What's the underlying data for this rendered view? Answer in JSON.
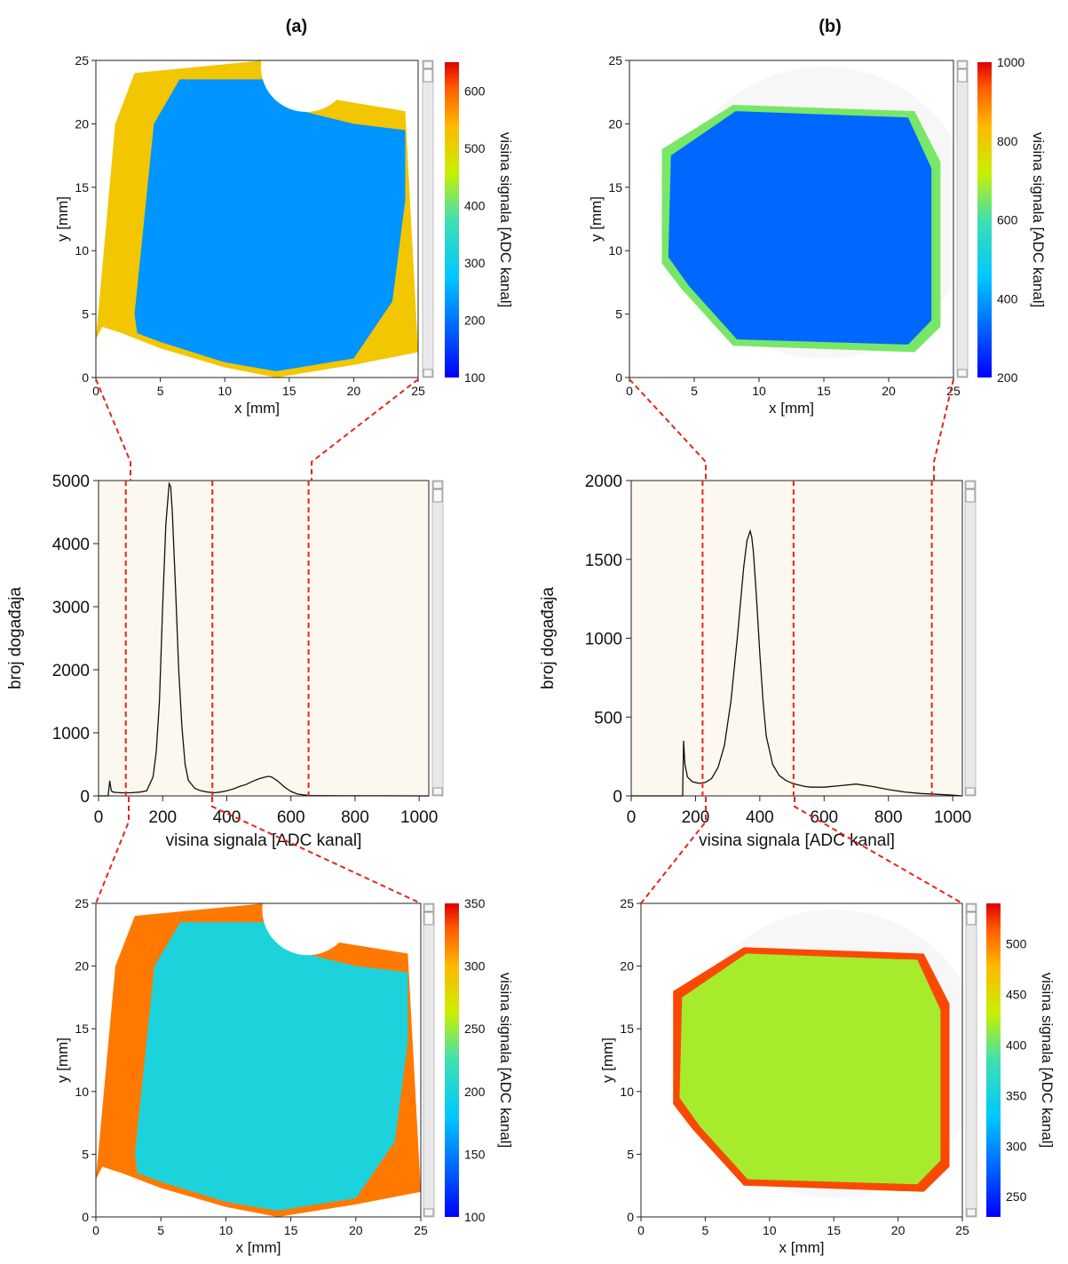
{
  "chart_data": [
    {
      "type": "heatmap",
      "panel_label": "(a)",
      "xlabel": "x [mm]",
      "ylabel": "y [mm]",
      "xlim": [
        0,
        25
      ],
      "ylim": [
        0,
        25
      ],
      "x_ticks": [
        "0",
        "5",
        "10",
        "15",
        "20",
        "25"
      ],
      "y_ticks": [
        "0",
        "5",
        "10",
        "15",
        "20",
        "25"
      ],
      "colorbar": {
        "label": "visina signala [ADC kanal]",
        "range": [
          100,
          650
        ],
        "ticks": [
          "100",
          "200",
          "300",
          "400",
          "500",
          "600"
        ]
      },
      "description_values": {
        "edge_region_level": 520,
        "central_region_level": 230
      }
    },
    {
      "type": "heatmap",
      "panel_label": "(b)",
      "xlabel": "x [mm]",
      "ylabel": "y [mm]",
      "xlim": [
        0,
        25
      ],
      "ylim": [
        0,
        25
      ],
      "x_ticks": [
        "0",
        "5",
        "10",
        "15",
        "20",
        "25"
      ],
      "y_ticks": [
        "0",
        "5",
        "10",
        "15",
        "20",
        "25"
      ],
      "colorbar": {
        "label": "visina signala [ADC kanal]",
        "range": [
          200,
          1000
        ],
        "ticks": [
          "200",
          "400",
          "600",
          "800",
          "1000"
        ]
      },
      "description_values": {
        "edge_region_level": 650,
        "central_region_level": 330
      }
    },
    {
      "type": "line",
      "xlabel": "visina signala [ADC kanal]",
      "ylabel": "broj događaja",
      "xlim": [
        0,
        1030
      ],
      "ylim": [
        0,
        5000
      ],
      "x_ticks": [
        "0",
        "200",
        "400",
        "600",
        "800",
        "1000"
      ],
      "y_ticks": [
        "0",
        "1000",
        "2000",
        "3000",
        "4000",
        "5000"
      ],
      "series": [
        {
          "x": [
            0,
            30,
            35,
            40,
            45,
            55,
            70,
            100,
            130,
            150,
            170,
            180,
            190,
            200,
            210,
            220,
            225,
            230,
            240,
            250,
            260,
            270,
            280,
            300,
            320,
            340,
            360,
            380,
            400,
            420,
            440,
            460,
            480,
            500,
            520,
            530,
            540,
            560,
            580,
            600,
            620,
            640,
            660,
            700,
            800,
            900,
            1000,
            1030
          ],
          "y": [
            0,
            0,
            240,
            80,
            60,
            55,
            50,
            50,
            60,
            80,
            300,
            700,
            1500,
            3000,
            4300,
            4950,
            4900,
            4500,
            3300,
            2000,
            1100,
            500,
            250,
            120,
            80,
            60,
            50,
            60,
            80,
            110,
            150,
            180,
            230,
            270,
            300,
            310,
            300,
            230,
            140,
            70,
            30,
            15,
            5,
            3,
            2,
            1,
            0,
            0
          ]
        }
      ],
      "markers": [
        85,
        355,
        655
      ]
    },
    {
      "type": "line",
      "xlabel": "visina signala [ADC kanal]",
      "ylabel": "broj događaja",
      "xlim": [
        0,
        1030
      ],
      "ylim": [
        0,
        2000
      ],
      "x_ticks": [
        "0",
        "200",
        "400",
        "600",
        "800",
        "1000"
      ],
      "y_ticks": [
        "0",
        "500",
        "1000",
        "1500",
        "2000"
      ],
      "series": [
        {
          "x": [
            0,
            155,
            160,
            163,
            167,
            175,
            190,
            210,
            230,
            250,
            270,
            290,
            310,
            330,
            350,
            360,
            370,
            375,
            380,
            390,
            400,
            410,
            420,
            440,
            460,
            480,
            500,
            520,
            540,
            560,
            600,
            650,
            700,
            750,
            800,
            850,
            900,
            950,
            1000,
            1030
          ],
          "y": [
            0,
            0,
            0,
            350,
            200,
            120,
            90,
            80,
            85,
            110,
            180,
            320,
            600,
            1000,
            1450,
            1620,
            1680,
            1640,
            1550,
            1250,
            900,
            600,
            380,
            200,
            130,
            100,
            80,
            70,
            60,
            55,
            55,
            65,
            75,
            60,
            40,
            25,
            15,
            10,
            5,
            0
          ]
        }
      ],
      "markers": [
        222,
        505,
        935
      ]
    },
    {
      "type": "heatmap",
      "xlabel": "x [mm]",
      "ylabel": "y [mm]",
      "xlim": [
        0,
        25
      ],
      "ylim": [
        0,
        25
      ],
      "x_ticks": [
        "0",
        "5",
        "10",
        "15",
        "20",
        "25"
      ],
      "y_ticks": [
        "0",
        "5",
        "10",
        "15",
        "20",
        "25"
      ],
      "colorbar": {
        "label": "visina signala [ADC kanal]",
        "range": [
          100,
          350
        ],
        "ticks": [
          "100",
          "150",
          "200",
          "250",
          "300",
          "350"
        ]
      },
      "description_values": {
        "edge_region_level": 320,
        "central_region_level": 200
      }
    },
    {
      "type": "heatmap",
      "xlabel": "x [mm]",
      "ylabel": "y [mm]",
      "xlim": [
        0,
        25
      ],
      "ylim": [
        0,
        25
      ],
      "x_ticks": [
        "0",
        "5",
        "10",
        "15",
        "20",
        "25"
      ],
      "y_ticks": [
        "0",
        "5",
        "10",
        "15",
        "20",
        "25"
      ],
      "colorbar": {
        "label": "visina signala [ADC kanal]",
        "range": [
          230,
          540
        ],
        "ticks": [
          "250",
          "300",
          "350",
          "400",
          "450",
          "500"
        ]
      },
      "description_values": {
        "edge_region_level": 520,
        "central_region_level": 420
      }
    }
  ],
  "colors": {
    "plot_bg": "#fcf8ef",
    "connector": "#e8231d",
    "axis": "#222222",
    "scrollbar": "#e9e9e9"
  }
}
